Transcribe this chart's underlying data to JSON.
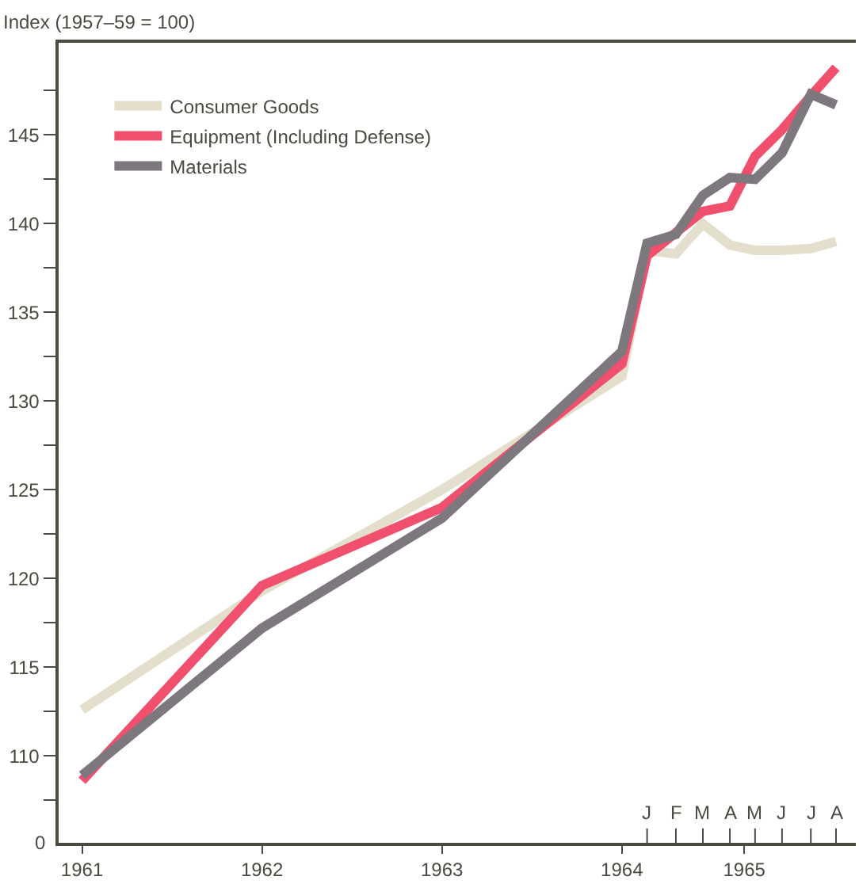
{
  "chart_data": {
    "type": "line",
    "ylabel": "Index (1957–59 = 100)",
    "x": [
      1961,
      1962,
      1963,
      1964,
      1964.14,
      1964.3,
      1964.45,
      1964.6,
      1964.74,
      1964.89,
      1965.05,
      1965.19
    ],
    "series": [
      {
        "name": "Consumer Goods",
        "color": "#e4dfcc",
        "values": [
          112.6,
          119.3,
          125.0,
          131.4,
          138.5,
          138.3,
          140.0,
          138.8,
          138.5,
          138.5,
          138.6,
          139.0
        ]
      },
      {
        "name": "Equipment (Including Defense)",
        "color": "#f0506e",
        "values": [
          108.6,
          119.6,
          124.0,
          132.1,
          138.2,
          139.5,
          140.7,
          141.0,
          143.8,
          145.3,
          147.2,
          148.8
        ]
      },
      {
        "name": "Materials",
        "color": "#7d787d",
        "values": [
          108.9,
          117.2,
          123.4,
          132.8,
          138.9,
          139.4,
          141.6,
          142.6,
          142.5,
          144.0,
          147.3,
          146.7
        ]
      }
    ],
    "xlim": [
      1960.87,
      1965.3
    ],
    "xticks": [
      1961,
      1962,
      1963,
      1964,
      {
        "value": 1964.68,
        "label": "1965"
      }
    ],
    "ylim": [
      105.1,
      150.2
    ],
    "annotations": [
      "0",
      "J",
      "F",
      "M",
      "A",
      "M",
      "J",
      "J",
      "A"
    ],
    "yticks": [
      {
        "value": 107.5,
        "label": null
      },
      110,
      {
        "value": 112.5,
        "label": null
      },
      115,
      {
        "value": 117.5,
        "label": null
      },
      120,
      {
        "value": 122.5,
        "label": null
      },
      125,
      {
        "value": 127.5,
        "label": null
      },
      130,
      {
        "value": 132.5,
        "label": null
      },
      135,
      {
        "value": 137.5,
        "label": null
      },
      140,
      {
        "value": 142.5,
        "label": null
      },
      145,
      {
        "value": 147.5,
        "label": null
      }
    ],
    "legend": "top left",
    "marker": "none",
    "line_style": "solid"
  }
}
